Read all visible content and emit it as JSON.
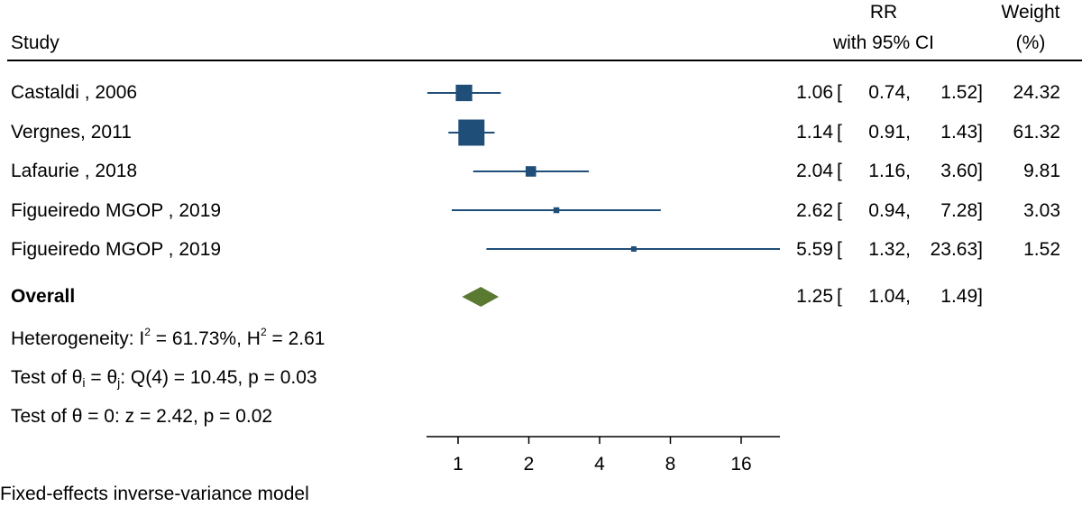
{
  "header": {
    "study_col": "Study",
    "rr_line1": "RR",
    "rr_line2": "with 95% CI",
    "weight_line1": "Weight",
    "weight_line2": "(%)"
  },
  "colors": {
    "study_marker": "#1f4e79",
    "overall_diamond": "#5a7a32"
  },
  "rows": [
    {
      "study": "Castaldi , 2006",
      "rr": "1.06",
      "lo": "0.74,",
      "hi": "1.52]",
      "weight": "24.32"
    },
    {
      "study": "Vergnes, 2011",
      "rr": "1.14",
      "lo": "0.91,",
      "hi": "1.43]",
      "weight": "61.32"
    },
    {
      "study": "Lafaurie , 2018",
      "rr": "2.04",
      "lo": "1.16,",
      "hi": "3.60]",
      "weight": "9.81"
    },
    {
      "study": "Figueiredo MGOP , 2019",
      "rr": "2.62",
      "lo": "0.94,",
      "hi": "7.28]",
      "weight": "3.03"
    },
    {
      "study": "Figueiredo MGOP , 2019",
      "rr": "5.59",
      "lo": "1.32,",
      "hi": "23.63]",
      "weight": "1.52"
    }
  ],
  "overall": {
    "label": "Overall",
    "rr": "1.25",
    "lo": "1.04,",
    "hi": "1.49]"
  },
  "stats": {
    "het_prefix": "Heterogeneity: I",
    "het_sup1": "2",
    "het_mid": " = 61.73%, H",
    "het_sup2": "2",
    "het_suffix": " = 2.61",
    "test1_prefix": "Test of θ",
    "test1_sub1": "i",
    "test1_mid": " = θ",
    "test1_sub2": "j",
    "test1_suffix": ": Q(4) = 10.45, p = 0.03",
    "test2": "Test of θ = 0: z = 2.42, p = 0.02"
  },
  "footnote": "Fixed-effects inverse-variance model",
  "chart_data": {
    "type": "forest",
    "xscale": "log2",
    "xlim": [
      0.74,
      23.63
    ],
    "xticks": [
      1,
      2,
      4,
      8,
      16
    ],
    "xtick_labels": [
      "1",
      "2",
      "4",
      "8",
      "16"
    ],
    "grid": false,
    "studies": [
      {
        "name": "Castaldi , 2006",
        "rr": 1.06,
        "ci_low": 0.74,
        "ci_high": 1.52,
        "weight": 24.32
      },
      {
        "name": "Vergnes, 2011",
        "rr": 1.14,
        "ci_low": 0.91,
        "ci_high": 1.43,
        "weight": 61.32
      },
      {
        "name": "Lafaurie , 2018",
        "rr": 2.04,
        "ci_low": 1.16,
        "ci_high": 3.6,
        "weight": 9.81
      },
      {
        "name": "Figueiredo MGOP , 2019",
        "rr": 2.62,
        "ci_low": 0.94,
        "ci_high": 7.28,
        "weight": 3.03
      },
      {
        "name": "Figueiredo MGOP , 2019",
        "rr": 5.59,
        "ci_low": 1.32,
        "ci_high": 23.63,
        "weight": 1.52
      }
    ],
    "overall": {
      "rr": 1.25,
      "ci_low": 1.04,
      "ci_high": 1.49
    }
  }
}
